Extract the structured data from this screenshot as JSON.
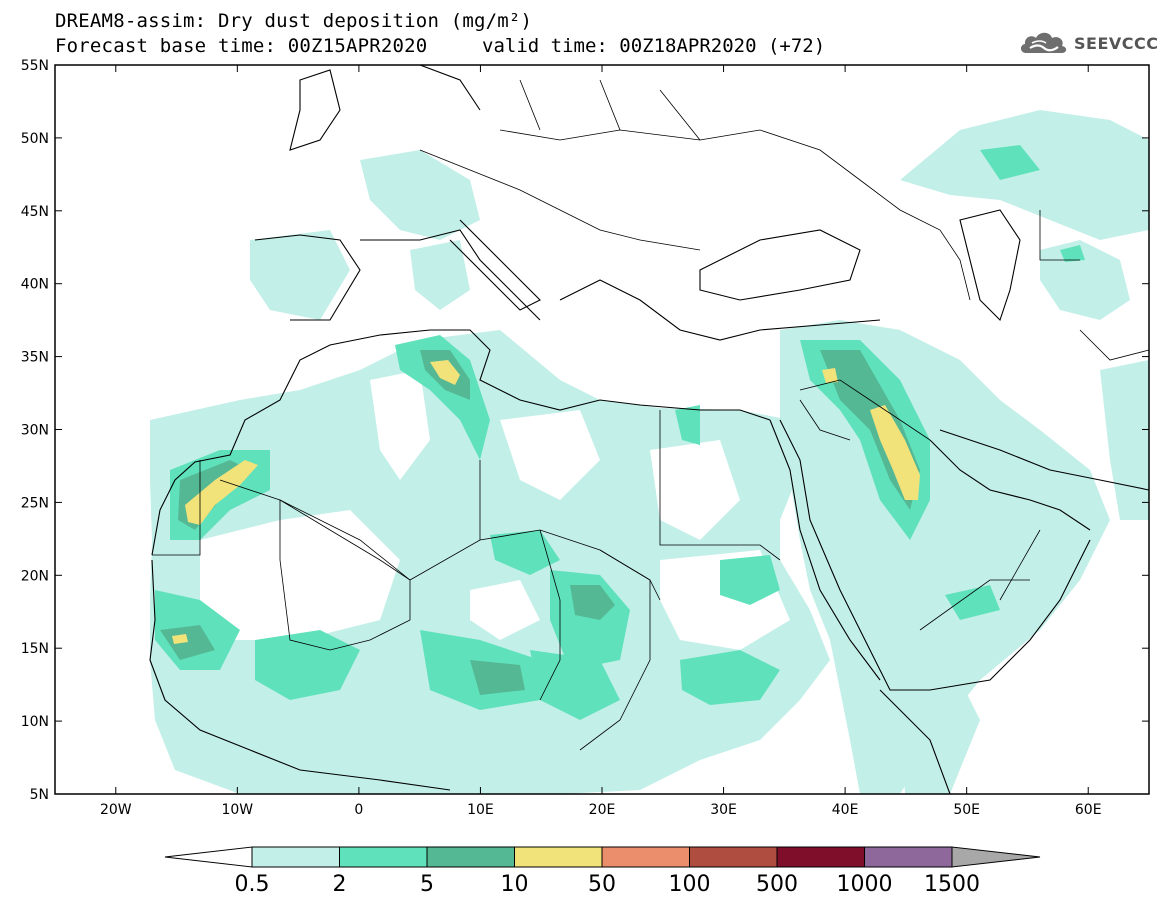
{
  "title": {
    "line1": "DREAM8-assim: Dry dust deposition (mg/m²)",
    "line2": "Forecast base time: 00Z15APR2020",
    "valid": "valid time: 00Z18APR2020 (+72)"
  },
  "logo": {
    "text": "SEEVCCC",
    "icon": "cloud-logo-icon",
    "color": "#6e6e6e"
  },
  "axes": {
    "lon_range": [
      -25,
      65
    ],
    "lat_range": [
      5,
      55
    ],
    "y_ticks": [
      {
        "lat": 55,
        "label": "55N"
      },
      {
        "lat": 50,
        "label": "50N"
      },
      {
        "lat": 45,
        "label": "45N"
      },
      {
        "lat": 40,
        "label": "40N"
      },
      {
        "lat": 35,
        "label": "35N"
      },
      {
        "lat": 30,
        "label": "30N"
      },
      {
        "lat": 25,
        "label": "25N"
      },
      {
        "lat": 20,
        "label": "20N"
      },
      {
        "lat": 15,
        "label": "15N"
      },
      {
        "lat": 10,
        "label": "10N"
      },
      {
        "lat": 5,
        "label": "5N"
      }
    ],
    "x_ticks": [
      {
        "lon": -20,
        "label": "20W"
      },
      {
        "lon": -10,
        "label": "10W"
      },
      {
        "lon": 0,
        "label": "0"
      },
      {
        "lon": 10,
        "label": "10E"
      },
      {
        "lon": 20,
        "label": "20E"
      },
      {
        "lon": 30,
        "label": "30E"
      },
      {
        "lon": 40,
        "label": "40E"
      },
      {
        "lon": 50,
        "label": "50E"
      },
      {
        "lon": 60,
        "label": "60E"
      }
    ]
  },
  "colorbar": {
    "labels": [
      "0.5",
      "2",
      "5",
      "10",
      "50",
      "100",
      "500",
      "1000",
      "1500"
    ],
    "bins": [
      "#c2efe8",
      "#5fe2bb",
      "#55b894",
      "#f1e37a",
      "#ea8e6b",
      "#ae4d40",
      "#7e0e2a",
      "#8e679b"
    ],
    "under_color": "#ffffff",
    "over_color": "#a8a8a8"
  },
  "levels": {
    "light": "#c2efe8",
    "medium": "#5fe2bb",
    "dark": "#55b894",
    "yellow": "#f1e37a"
  }
}
